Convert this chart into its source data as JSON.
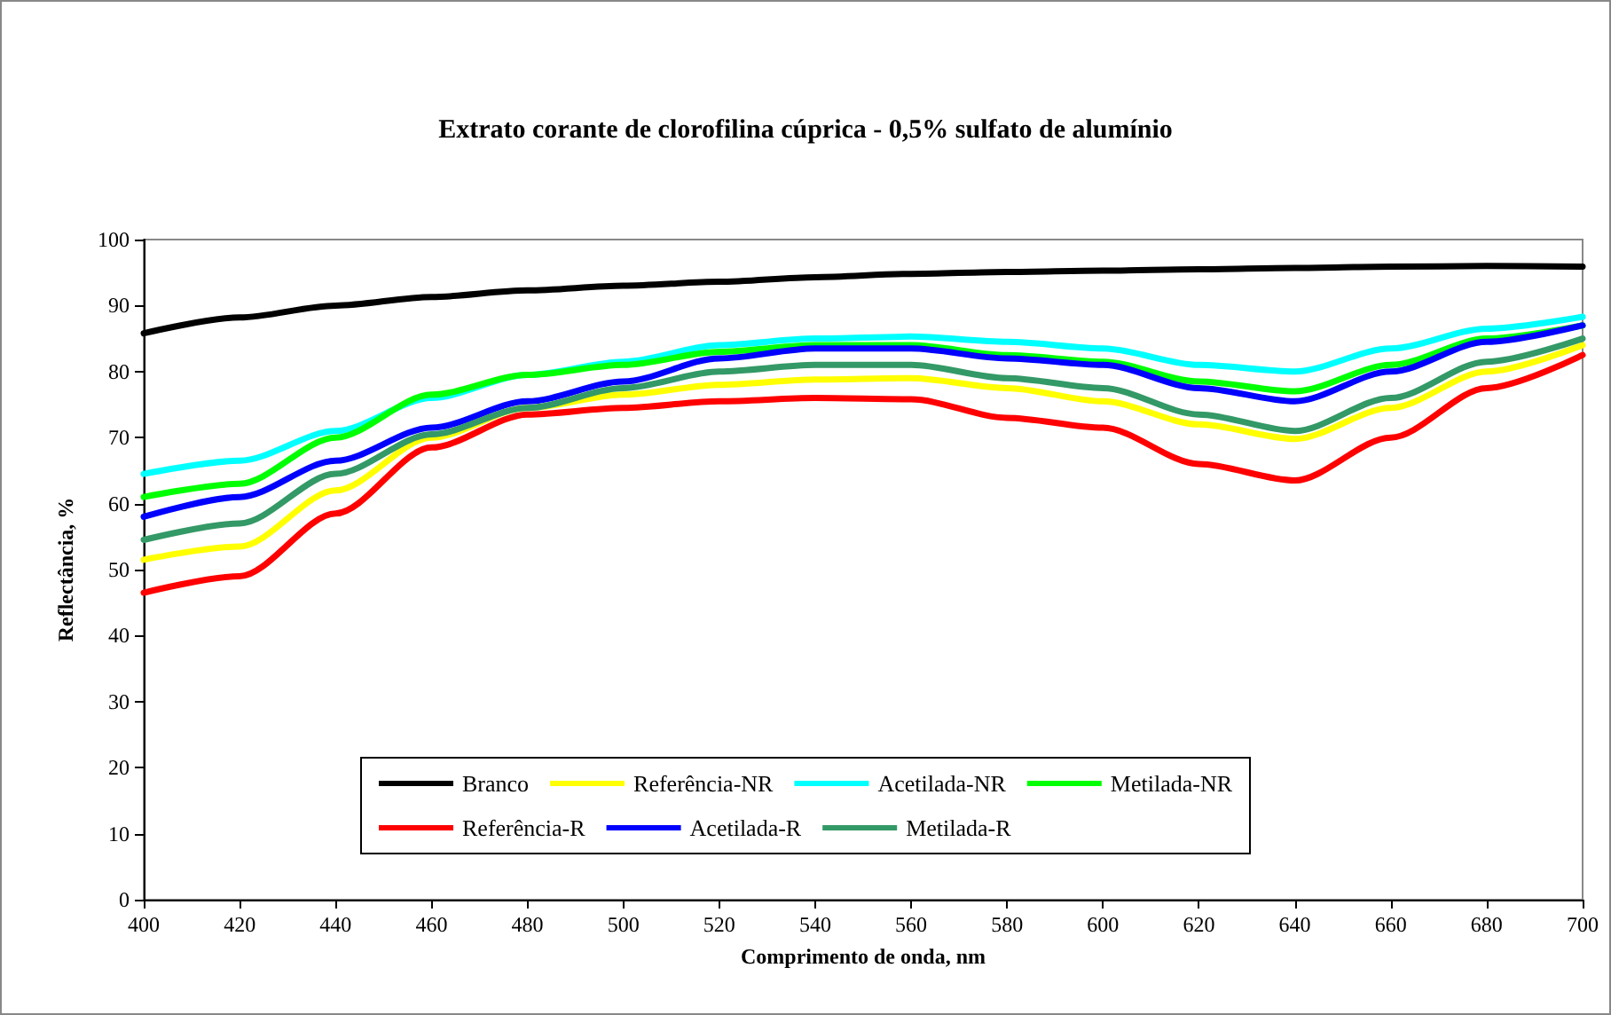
{
  "chart_data": {
    "type": "line",
    "title": "Extrato corante de clorofilina cúprica - 0,5% sulfato de alumínio",
    "xlabel": "Comprimento de onda, nm",
    "ylabel": "Reflectância, %",
    "x": [
      400,
      420,
      440,
      460,
      480,
      500,
      520,
      540,
      560,
      580,
      600,
      620,
      640,
      660,
      680,
      700
    ],
    "xlim": [
      400,
      700
    ],
    "xticks": [
      400,
      420,
      440,
      460,
      480,
      500,
      520,
      540,
      560,
      580,
      600,
      620,
      640,
      660,
      680,
      700
    ],
    "ylim": [
      0,
      100
    ],
    "yticks": [
      0,
      10,
      20,
      30,
      40,
      50,
      60,
      70,
      80,
      90,
      100
    ],
    "grid": false,
    "legend": "bottom",
    "marker": "none",
    "line_style": "solid",
    "series": [
      {
        "name": "Branco",
        "color": "#000000",
        "values": [
          85.8,
          88.2,
          90.0,
          91.3,
          92.3,
          93.0,
          93.6,
          94.3,
          94.8,
          95.1,
          95.3,
          95.5,
          95.7,
          95.9,
          96.0,
          95.9
        ]
      },
      {
        "name": "Referência-NR",
        "color": "#ffff00",
        "values": [
          51.5,
          53.5,
          62,
          70,
          74.5,
          76.5,
          78,
          78.8,
          79,
          77.5,
          75.5,
          72,
          69.8,
          74.5,
          80,
          84
        ]
      },
      {
        "name": "Acetilada-NR",
        "color": "#00ffff",
        "values": [
          64.5,
          66.5,
          71,
          76,
          79.5,
          81.5,
          84,
          85,
          85.3,
          84.5,
          83.5,
          81,
          80,
          83.5,
          86.5,
          88.3
        ]
      },
      {
        "name": "Metilada-NR",
        "color": "#00ff00",
        "values": [
          61,
          63,
          70,
          76.5,
          79.5,
          81,
          83,
          84,
          84,
          82.5,
          81.5,
          78.5,
          77,
          81,
          85,
          87
        ]
      },
      {
        "name": "Referência-R",
        "color": "#ff0000",
        "values": [
          46.5,
          49,
          58.5,
          68.5,
          73.5,
          74.5,
          75.5,
          76,
          75.8,
          73,
          71.5,
          66,
          63.5,
          70,
          77.5,
          82.5
        ]
      },
      {
        "name": "Acetilada-R",
        "color": "#0000ff",
        "values": [
          58,
          61,
          66.5,
          71.5,
          75.5,
          78.5,
          82,
          83.5,
          83.5,
          82,
          81,
          77.5,
          75.5,
          80,
          84.5,
          87
        ]
      },
      {
        "name": "Metilada-R",
        "color": "#339966",
        "values": [
          54.5,
          57,
          64.5,
          70.5,
          74.5,
          77.5,
          80,
          81,
          81,
          79,
          77.5,
          73.5,
          71,
          76,
          81.5,
          85
        ]
      }
    ]
  }
}
